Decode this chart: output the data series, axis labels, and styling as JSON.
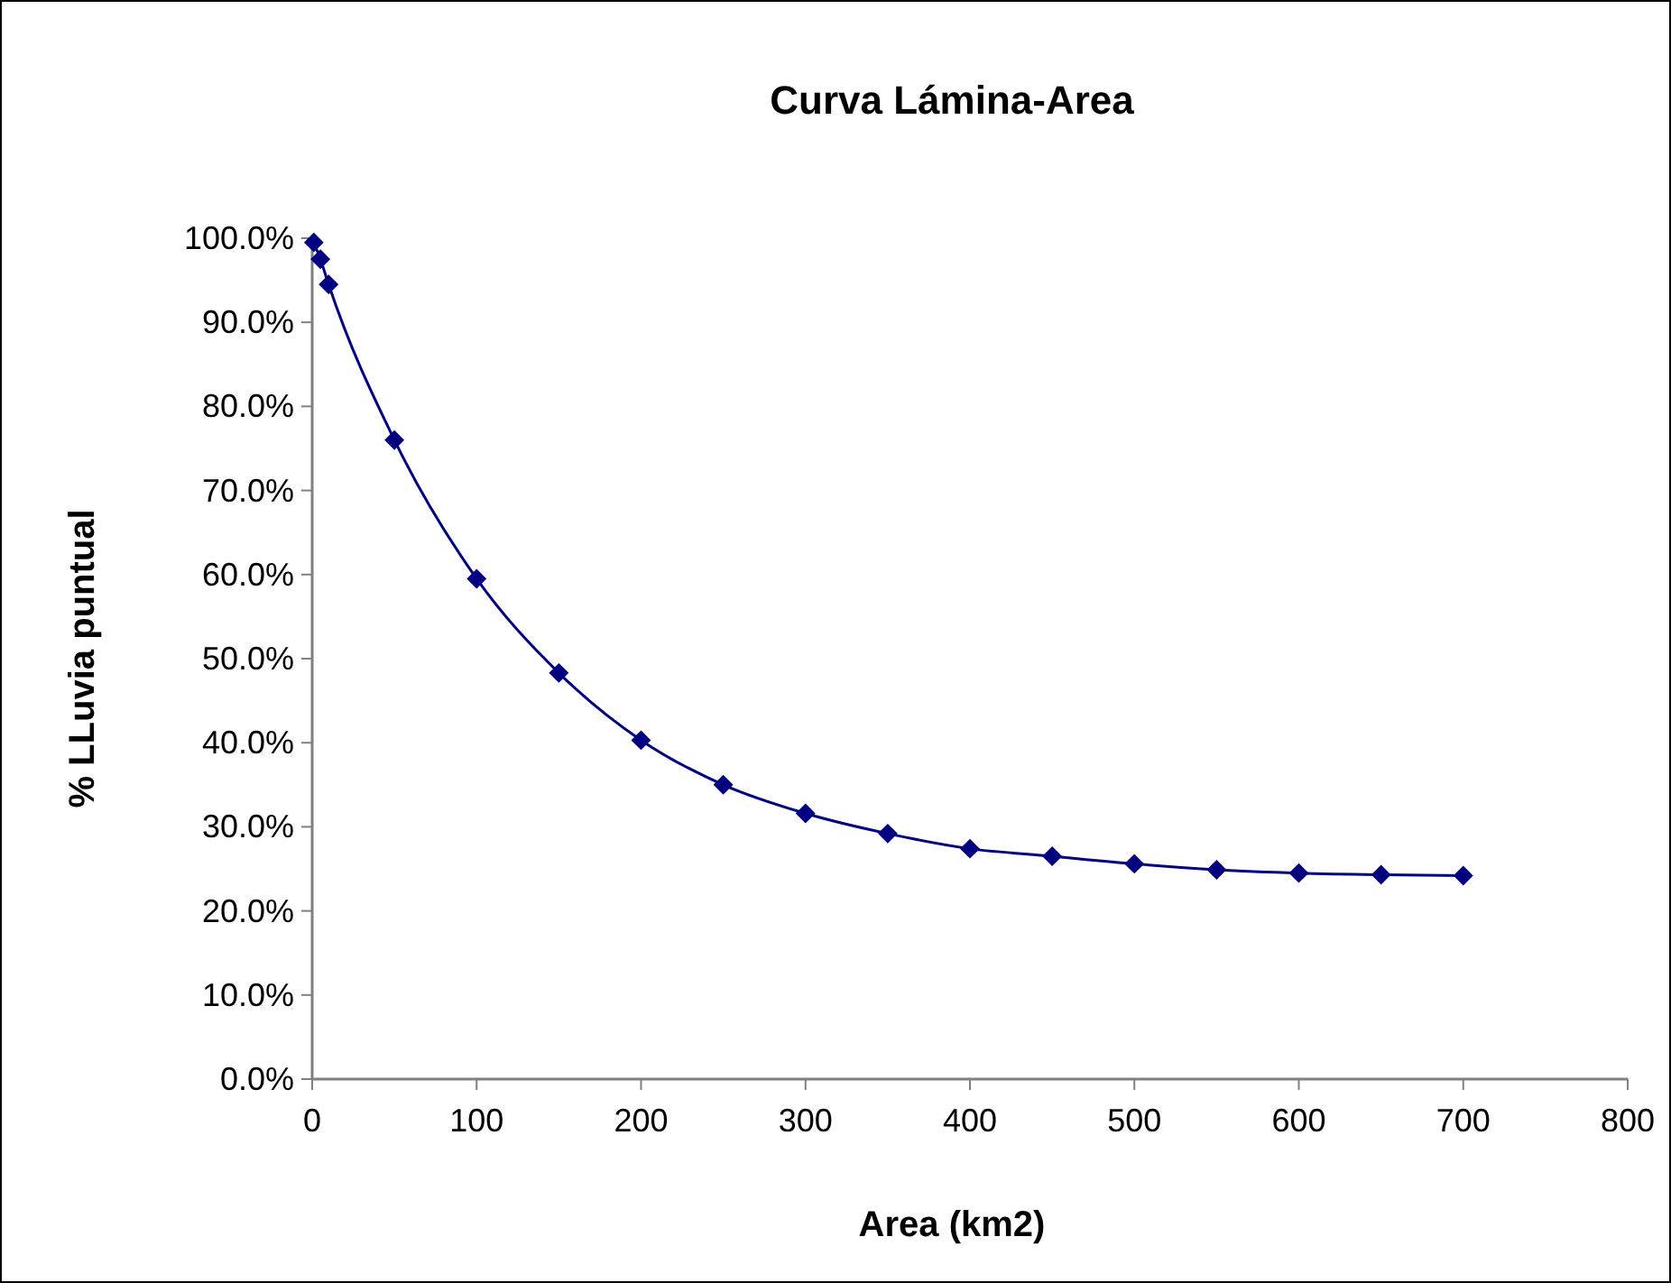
{
  "chart_data": {
    "type": "line",
    "title": "Curva Lámina-Area",
    "xlabel": "Area (km2)",
    "ylabel": "% LLuvia puntual",
    "x": [
      1,
      5,
      10,
      50,
      100,
      150,
      200,
      250,
      300,
      350,
      400,
      450,
      500,
      550,
      600,
      650,
      700
    ],
    "series": [
      {
        "color": "#000080",
        "values": [
          99.5,
          97.5,
          94.5,
          76,
          59.5,
          48.3,
          40.3,
          35,
          31.6,
          29.2,
          27.4,
          26.5,
          25.6,
          24.9,
          24.5,
          24.3,
          24.2
        ]
      }
    ],
    "xlim": [
      0,
      800
    ],
    "xticks": [
      0,
      100,
      200,
      300,
      400,
      500,
      600,
      700,
      800
    ],
    "ylim": [
      0,
      100
    ],
    "yticks": [
      {
        "value": 0,
        "label": "0.0%"
      },
      {
        "value": 10,
        "label": "10.0%"
      },
      {
        "value": 20,
        "label": "20.0%"
      },
      {
        "value": 30,
        "label": "30.0%"
      },
      {
        "value": 40,
        "label": "40.0%"
      },
      {
        "value": 50,
        "label": "50.0%"
      },
      {
        "value": 60,
        "label": "60.0%"
      },
      {
        "value": 70,
        "label": "70.0%"
      },
      {
        "value": 80,
        "label": "80.0%"
      },
      {
        "value": 90,
        "label": "90.0%"
      },
      {
        "value": 100,
        "label": "100.0%"
      }
    ],
    "grid": false,
    "marker": "diamond",
    "line_style": "solid"
  }
}
